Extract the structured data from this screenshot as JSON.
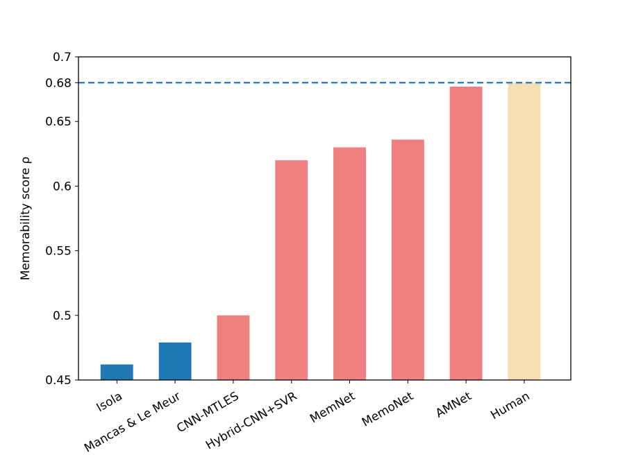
{
  "chart_data": {
    "type": "bar",
    "categories": [
      "Isola",
      "Mancas & Le Meur",
      "CNN-MTLES",
      "Hybrid-CNN+SVR",
      "MemNet",
      "MemoNet",
      "AMNet",
      "Human"
    ],
    "values": [
      0.462,
      0.479,
      0.5,
      0.62,
      0.63,
      0.636,
      0.677,
      0.68
    ],
    "bar_colors": [
      "#1f77b4",
      "#1f77b4",
      "#f08080",
      "#f08080",
      "#f08080",
      "#f08080",
      "#f08080",
      "#f5deb3"
    ],
    "title": "",
    "xlabel": "",
    "ylabel": "Memorability score ρ",
    "ylim": [
      0.45,
      0.7
    ],
    "yticks": [
      0.45,
      0.5,
      0.55,
      0.6,
      0.65,
      0.68,
      0.7
    ],
    "ytick_labels": [
      "0.45",
      "0.5",
      "0.55",
      "0.6",
      "0.65",
      "0.68",
      "0.7"
    ],
    "reference_line": {
      "value": 0.68,
      "style": "dashed",
      "color": "#1f77b4"
    },
    "grid": false,
    "legend": "none"
  }
}
